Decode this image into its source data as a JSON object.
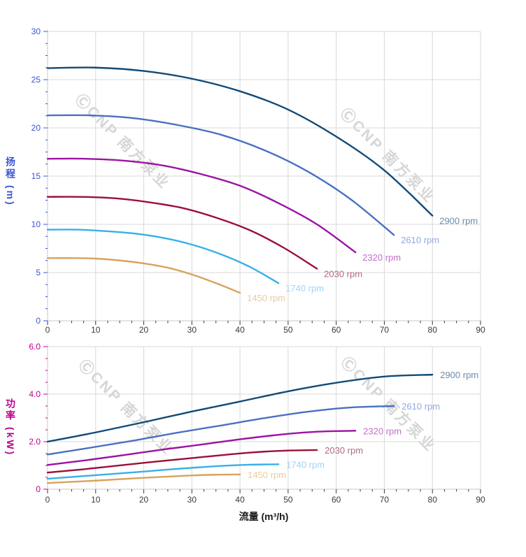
{
  "watermark": {
    "text": "ⒸCNP 南方泵业",
    "color": "#828282"
  },
  "chart_data": [
    {
      "type": "line",
      "title": "",
      "xlabel": "",
      "ylabel": "扬程 (m)",
      "axis_color": "#3d55d2",
      "tick_text_color": "#3a3a3a",
      "grid": true,
      "legend_position": "curve-ends",
      "xlim": [
        0,
        90
      ],
      "ylim": [
        0,
        30
      ],
      "x_tick_labels": [
        "0",
        "10",
        "20",
        "30",
        "40",
        "50",
        "60",
        "70",
        "80",
        "90"
      ],
      "x_major_step": 10,
      "x_minor_per_major": 4,
      "y_ticks": [
        0,
        5,
        10,
        15,
        20,
        25,
        30
      ],
      "y_tick_labels": [
        "0",
        "5",
        "10",
        "15",
        "20",
        "25",
        "30"
      ],
      "y_minor_per_major": 4,
      "series": [
        {
          "name": "2900 rpm",
          "color": "#134a75",
          "label_color": "#6a8cab",
          "x": [
            0,
            10,
            20,
            30,
            40,
            50,
            60,
            70,
            80
          ],
          "y": [
            26.2,
            26.25,
            25.9,
            25.1,
            23.8,
            21.9,
            19.1,
            15.6,
            10.9
          ]
        },
        {
          "name": "2610 rpm",
          "color": "#4a70c4",
          "label_color": "#92a9df",
          "x": [
            0,
            9,
            18,
            27,
            36,
            45,
            54,
            63,
            72
          ],
          "y": [
            21.3,
            21.3,
            21.0,
            20.3,
            19.3,
            17.7,
            15.5,
            12.6,
            8.9
          ]
        },
        {
          "name": "2320 rpm",
          "color": "#9c12a4",
          "label_color": "#c36fca",
          "x": [
            0,
            8,
            16,
            24,
            32,
            40,
            48,
            56,
            64
          ],
          "y": [
            16.8,
            16.8,
            16.6,
            16.1,
            15.2,
            14.0,
            12.2,
            10.0,
            7.1
          ]
        },
        {
          "name": "2030 rpm",
          "color": "#9b1038",
          "label_color": "#b0697f",
          "x": [
            0,
            7,
            14,
            21,
            28,
            35,
            42,
            49,
            56
          ],
          "y": [
            12.85,
            12.85,
            12.7,
            12.3,
            11.7,
            10.7,
            9.4,
            7.6,
            5.4
          ]
        },
        {
          "name": "1740 rpm",
          "color": "#38b0e6",
          "label_color": "#9cd5f3",
          "x": [
            0,
            6,
            12,
            18,
            24,
            30,
            36,
            42,
            48
          ],
          "y": [
            9.45,
            9.45,
            9.3,
            9.05,
            8.6,
            7.9,
            6.9,
            5.6,
            3.9
          ]
        },
        {
          "name": "1450 rpm",
          "color": "#d8a25c",
          "label_color": "#e8cba1",
          "x": [
            0,
            5,
            10,
            15,
            20,
            25,
            30,
            35,
            40
          ],
          "y": [
            6.5,
            6.5,
            6.45,
            6.25,
            5.95,
            5.5,
            4.8,
            3.9,
            2.9
          ]
        }
      ]
    },
    {
      "type": "line",
      "title": "",
      "xlabel": "流量 (m³/h)",
      "ylabel": "功率 (kW)",
      "axis_color": "#bf0090",
      "tick_text_color": "#3a3a3a",
      "grid": true,
      "legend_position": "curve-ends",
      "xlim": [
        0,
        90
      ],
      "ylim": [
        0,
        6
      ],
      "x_tick_labels": [
        "0",
        "10",
        "20",
        "30",
        "40",
        "50",
        "60",
        "70",
        "80",
        "90"
      ],
      "x_major_step": 10,
      "x_minor_per_major": 4,
      "y_ticks": [
        0,
        2,
        4,
        6
      ],
      "y_tick_labels": [
        "0",
        "2.0",
        "4.0",
        "6.0"
      ],
      "y_minor_per_major": 4,
      "series": [
        {
          "name": "2900 rpm",
          "color": "#134a75",
          "label_color": "#6a8cab",
          "x": [
            0,
            10,
            20,
            30,
            40,
            50,
            60,
            70,
            80
          ],
          "y": [
            2.0,
            2.39,
            2.82,
            3.27,
            3.69,
            4.12,
            4.48,
            4.74,
            4.82
          ]
        },
        {
          "name": "2610 rpm",
          "color": "#4a70c4",
          "label_color": "#92a9df",
          "x": [
            0,
            9,
            18,
            27,
            36,
            45,
            54,
            63,
            72
          ],
          "y": [
            1.46,
            1.75,
            2.05,
            2.38,
            2.68,
            2.99,
            3.26,
            3.44,
            3.5
          ]
        },
        {
          "name": "2320 rpm",
          "color": "#9c12a4",
          "label_color": "#c36fca",
          "x": [
            0,
            8,
            16,
            24,
            32,
            40,
            48,
            56,
            64
          ],
          "y": [
            1.02,
            1.22,
            1.44,
            1.67,
            1.88,
            2.1,
            2.29,
            2.42,
            2.46
          ]
        },
        {
          "name": "2030 rpm",
          "color": "#9b1038",
          "label_color": "#b0697f",
          "x": [
            0,
            7,
            14,
            21,
            28,
            35,
            42,
            49,
            56
          ],
          "y": [
            0.7,
            0.83,
            0.98,
            1.13,
            1.27,
            1.41,
            1.54,
            1.62,
            1.65
          ]
        },
        {
          "name": "1740 rpm",
          "color": "#38b0e6",
          "label_color": "#9cd5f3",
          "x": [
            0,
            6,
            12,
            18,
            24,
            30,
            36,
            42,
            48
          ],
          "y": [
            0.44,
            0.53,
            0.62,
            0.71,
            0.81,
            0.9,
            0.98,
            1.03,
            1.05
          ]
        },
        {
          "name": "1450 rpm",
          "color": "#d8a25c",
          "label_color": "#e8cba1",
          "x": [
            0,
            5,
            10,
            15,
            20,
            25,
            30,
            35,
            40
          ],
          "y": [
            0.26,
            0.31,
            0.36,
            0.42,
            0.48,
            0.53,
            0.58,
            0.61,
            0.62
          ]
        }
      ]
    }
  ]
}
